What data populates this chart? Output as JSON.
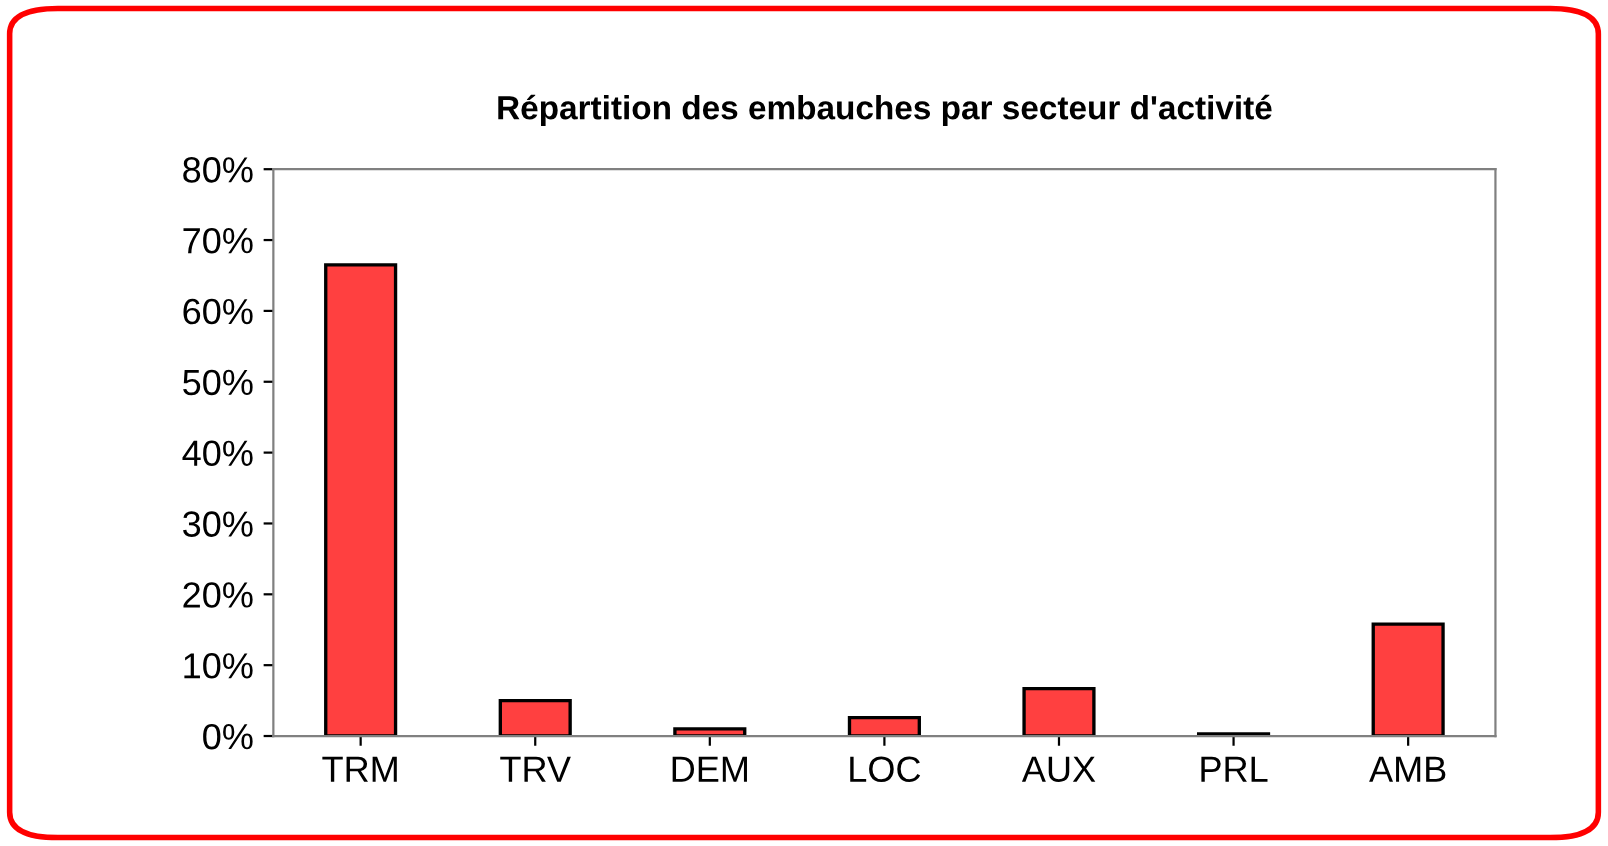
{
  "chart_data": {
    "type": "bar",
    "title": "Répartition des embauches par secteur d'activité",
    "categories": [
      "TRM",
      "TRV",
      "DEM",
      "LOC",
      "AUX",
      "PRL",
      "AMB"
    ],
    "values": [
      66.5,
      5,
      1,
      2.6,
      6.7,
      0.3,
      15.8
    ],
    "color": "#ff4040",
    "ylim": [
      0,
      80
    ],
    "yticks": [
      {
        "value": 0,
        "label": "0%"
      },
      {
        "value": 10,
        "label": "10%"
      },
      {
        "value": 20,
        "label": "20%"
      },
      {
        "value": 30,
        "label": "30%"
      },
      {
        "value": 40,
        "label": "40%"
      },
      {
        "value": 50,
        "label": "50%"
      },
      {
        "value": 60,
        "label": "60%"
      },
      {
        "value": 70,
        "label": "70%"
      },
      {
        "value": 80,
        "label": "80%"
      }
    ],
    "grid": false
  }
}
